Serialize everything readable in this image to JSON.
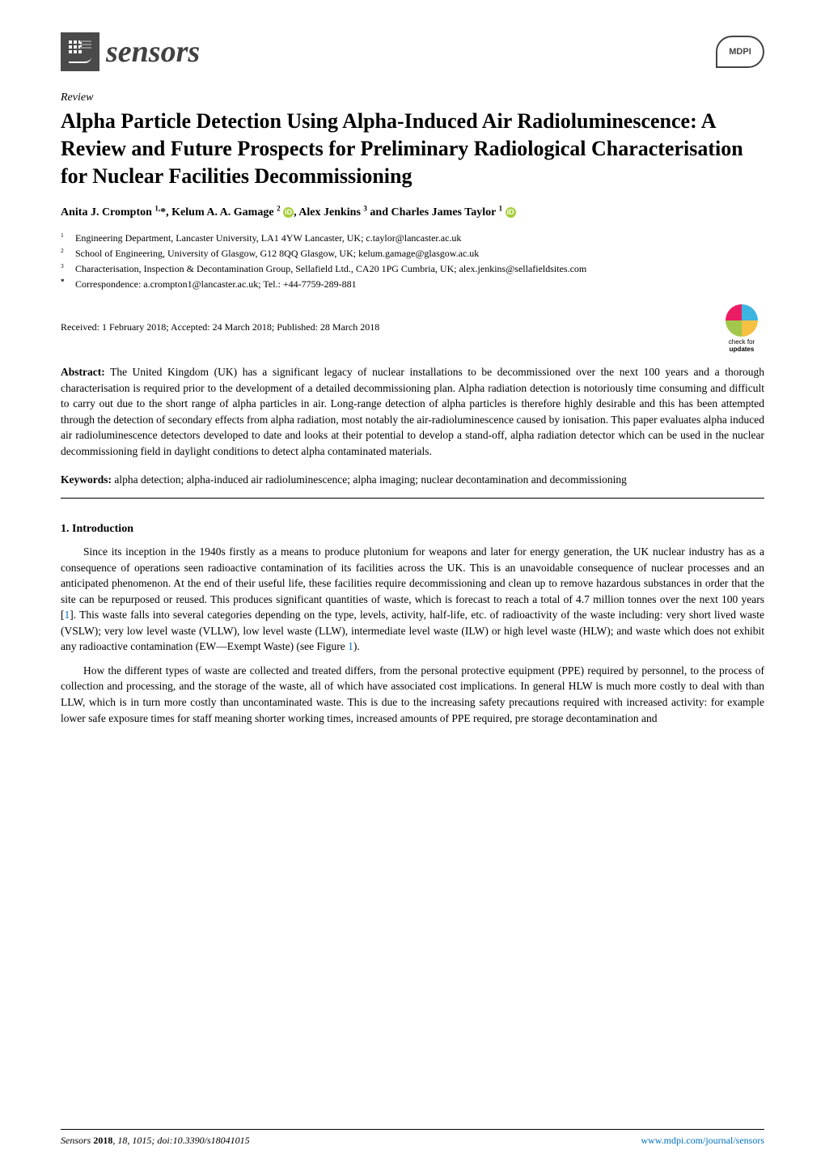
{
  "journal": {
    "logo_text": "sensors",
    "publisher_logo": "MDPI"
  },
  "article": {
    "type": "Review",
    "title": "Alpha Particle Detection Using Alpha-Induced Air Radioluminescence: A Review and Future Prospects for Preliminary Radiological Characterisation for Nuclear Facilities Decommissioning",
    "authors_html": "Anita J. Crompton <sup>1,</sup>*, Kelum A. A. Gamage <sup>2</sup> ",
    "authors_tail": ", Alex Jenkins <sup>3</sup> and Charles James Taylor <sup>1</sup> ",
    "affiliations": [
      {
        "num": "1",
        "text": "Engineering Department, Lancaster University, LA1 4YW Lancaster, UK; c.taylor@lancaster.ac.uk"
      },
      {
        "num": "2",
        "text": "School of Engineering, University of Glasgow, G12 8QQ Glasgow, UK; kelum.gamage@glasgow.ac.uk"
      },
      {
        "num": "3",
        "text": "Characterisation, Inspection & Decontamination Group, Sellafield Ltd., CA20 1PG Cumbria, UK; alex.jenkins@sellafieldsites.com"
      }
    ],
    "correspondence": {
      "sym": "*",
      "text": "Correspondence: a.crompton1@lancaster.ac.uk; Tel.: +44-7759-289-881"
    },
    "dates": "Received: 1 February 2018; Accepted: 24 March 2018; Published: 28 March 2018",
    "check_updates": {
      "line1": "check for",
      "line2": "updates"
    },
    "abstract_label": "Abstract:",
    "abstract": "The United Kingdom (UK) has a significant legacy of nuclear installations to be decommissioned over the next 100 years and a thorough characterisation is required prior to the development of a detailed decommissioning plan. Alpha radiation detection is notoriously time consuming and difficult to carry out due to the short range of alpha particles in air. Long-range detection of alpha particles is therefore highly desirable and this has been attempted through the detection of secondary effects from alpha radiation, most notably the air-radioluminescence caused by ionisation. This paper evaluates alpha induced air radioluminescence detectors developed to date and looks at their potential to develop a stand-off, alpha radiation detector which can be used in the nuclear decommissioning field in daylight conditions to detect alpha contaminated materials.",
    "keywords_label": "Keywords:",
    "keywords": "alpha detection; alpha-induced air radioluminescence; alpha imaging; nuclear decontamination and decommissioning"
  },
  "section": {
    "heading": "1. Introduction",
    "para1_a": "Since its inception in the 1940s firstly as a means to produce plutonium for weapons and later for energy generation, the UK nuclear industry has as a consequence of operations seen radioactive contamination of its facilities across the UK. This is an unavoidable consequence of nuclear processes and an anticipated phenomenon. At the end of their useful life, these facilities require decommissioning and clean up to remove hazardous substances in order that the site can be repurposed or reused. This produces significant quantities of waste, which is forecast to reach a total of 4.7 million tonnes over the next 100 years [",
    "ref1": "1",
    "para1_b": "]. This waste falls into several categories depending on the type, levels, activity, half-life, etc. of radioactivity of the waste including: very short lived waste (VSLW); very low level waste (VLLW), low level waste (LLW), intermediate level waste (ILW) or high level waste (HLW); and waste which does not exhibit any radioactive contamination (EW—Exempt Waste) (see Figure ",
    "figref1": "1",
    "para1_c": ").",
    "para2": "How the different types of waste are collected and treated differs, from the personal protective equipment (PPE) required by personnel, to the process of collection and processing, and the storage of the waste, all of which have associated cost implications. In general HLW is much more costly to deal with than LLW, which is in turn more costly than uncontaminated waste. This is due to the increasing safety precautions required with increased activity: for example lower safe exposure times for staff meaning shorter working times, increased amounts of PPE required, pre storage decontamination and"
  },
  "footer": {
    "left_italic": "Sensors ",
    "left_bold": "2018",
    "left_rest": ", 18, 1015; doi:10.3390/s18041015",
    "right": "www.mdpi.com/journal/sensors"
  },
  "colors": {
    "text": "#000000",
    "link": "#0070c0",
    "orcid": "#a6ce39",
    "logo_gray": "#4a4a4a",
    "sensors_gray": "#414141",
    "check_q1": "#ec1c64",
    "check_q2": "#3eb5e0",
    "check_q3": "#a1c84c",
    "check_q4": "#f6c142"
  },
  "typography": {
    "title_fontsize": 26,
    "body_fontsize": 13.5,
    "affil_fontsize": 12,
    "footer_fontsize": 12,
    "sensors_fontsize": 38
  }
}
